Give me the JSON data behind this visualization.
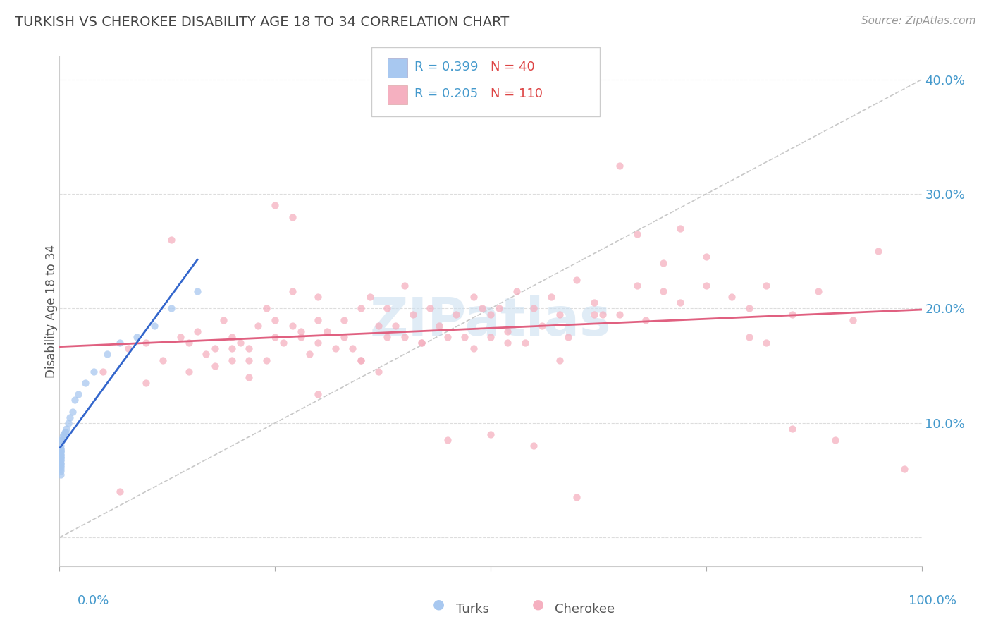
{
  "title": "TURKISH VS CHEROKEE DISABILITY AGE 18 TO 34 CORRELATION CHART",
  "source_text": "Source: ZipAtlas.com",
  "ylabel": "Disability Age 18 to 34",
  "legend_turks_r": "R = 0.399",
  "legend_turks_n": "N = 40",
  "legend_cherokee_r": "R = 0.205",
  "legend_cherokee_n": "N = 110",
  "legend_label_turks": "Turks",
  "legend_label_cherokee": "Cherokee",
  "turks_color": "#a8c8f0",
  "cherokee_color": "#f5b0c0",
  "turks_line_color": "#3366cc",
  "cherokee_line_color": "#e06080",
  "ref_line_color": "#bbbbbb",
  "watermark_color": "#cce0f0",
  "watermark_text": "ZIPatlas",
  "background_color": "#ffffff",
  "grid_color": "#dddddd",
  "title_color": "#444444",
  "axis_label_color": "#4499cc",
  "legend_r_color": "#4499cc",
  "legend_n_color": "#dd4444",
  "xlim": [
    0.0,
    1.0
  ],
  "ylim": [
    -0.025,
    0.42
  ],
  "yticks": [
    0.0,
    0.1,
    0.2,
    0.3,
    0.4
  ],
  "ytick_labels": [
    "",
    "10.0%",
    "20.0%",
    "30.0%",
    "40.0%"
  ],
  "turks_x": [
    0.001,
    0.001,
    0.001,
    0.001,
    0.001,
    0.001,
    0.001,
    0.001,
    0.001,
    0.001,
    0.001,
    0.001,
    0.001,
    0.001,
    0.001,
    0.001,
    0.001,
    0.001,
    0.001,
    0.001,
    0.002,
    0.003,
    0.004,
    0.005,
    0.006,
    0.007,
    0.008,
    0.01,
    0.012,
    0.015,
    0.018,
    0.022,
    0.03,
    0.04,
    0.055,
    0.07,
    0.09,
    0.11,
    0.13,
    0.16
  ],
  "turks_y": [
    0.055,
    0.058,
    0.06,
    0.062,
    0.063,
    0.065,
    0.065,
    0.067,
    0.068,
    0.07,
    0.07,
    0.071,
    0.072,
    0.073,
    0.075,
    0.075,
    0.076,
    0.077,
    0.078,
    0.08,
    0.085,
    0.085,
    0.088,
    0.09,
    0.092,
    0.092,
    0.095,
    0.1,
    0.105,
    0.11,
    0.12,
    0.125,
    0.135,
    0.145,
    0.16,
    0.17,
    0.175,
    0.185,
    0.2,
    0.215
  ],
  "cherokee_x": [
    0.05,
    0.08,
    0.1,
    0.12,
    0.13,
    0.14,
    0.15,
    0.15,
    0.16,
    0.17,
    0.18,
    0.18,
    0.19,
    0.2,
    0.2,
    0.21,
    0.22,
    0.22,
    0.23,
    0.24,
    0.24,
    0.25,
    0.25,
    0.26,
    0.27,
    0.27,
    0.28,
    0.28,
    0.29,
    0.3,
    0.3,
    0.31,
    0.32,
    0.33,
    0.33,
    0.34,
    0.35,
    0.35,
    0.36,
    0.37,
    0.38,
    0.38,
    0.39,
    0.4,
    0.41,
    0.42,
    0.43,
    0.44,
    0.45,
    0.46,
    0.47,
    0.48,
    0.48,
    0.49,
    0.5,
    0.5,
    0.51,
    0.52,
    0.53,
    0.54,
    0.55,
    0.56,
    0.57,
    0.58,
    0.59,
    0.6,
    0.62,
    0.63,
    0.65,
    0.67,
    0.68,
    0.7,
    0.72,
    0.75,
    0.78,
    0.8,
    0.82,
    0.85,
    0.88,
    0.9,
    0.2,
    0.22,
    0.27,
    0.3,
    0.35,
    0.37,
    0.42,
    0.45,
    0.52,
    0.58,
    0.62,
    0.67,
    0.7,
    0.75,
    0.8,
    0.85,
    0.3,
    0.4,
    0.5,
    0.6,
    0.07,
    0.1,
    0.25,
    0.55,
    0.65,
    0.72,
    0.82,
    0.92,
    0.95,
    0.98
  ],
  "cherokee_y": [
    0.145,
    0.165,
    0.17,
    0.155,
    0.26,
    0.175,
    0.145,
    0.17,
    0.18,
    0.16,
    0.15,
    0.165,
    0.19,
    0.155,
    0.175,
    0.17,
    0.14,
    0.165,
    0.185,
    0.155,
    0.2,
    0.175,
    0.19,
    0.17,
    0.215,
    0.185,
    0.175,
    0.18,
    0.16,
    0.21,
    0.19,
    0.18,
    0.165,
    0.175,
    0.19,
    0.165,
    0.155,
    0.2,
    0.21,
    0.185,
    0.2,
    0.175,
    0.185,
    0.22,
    0.195,
    0.17,
    0.2,
    0.185,
    0.085,
    0.195,
    0.175,
    0.21,
    0.165,
    0.2,
    0.195,
    0.175,
    0.2,
    0.18,
    0.215,
    0.17,
    0.2,
    0.185,
    0.21,
    0.195,
    0.175,
    0.225,
    0.205,
    0.195,
    0.195,
    0.22,
    0.19,
    0.215,
    0.205,
    0.22,
    0.21,
    0.2,
    0.22,
    0.195,
    0.215,
    0.085,
    0.165,
    0.155,
    0.28,
    0.17,
    0.155,
    0.145,
    0.17,
    0.175,
    0.17,
    0.155,
    0.195,
    0.265,
    0.24,
    0.245,
    0.175,
    0.095,
    0.125,
    0.175,
    0.09,
    0.035,
    0.04,
    0.135,
    0.29,
    0.08,
    0.325,
    0.27,
    0.17,
    0.19,
    0.25,
    0.06
  ]
}
